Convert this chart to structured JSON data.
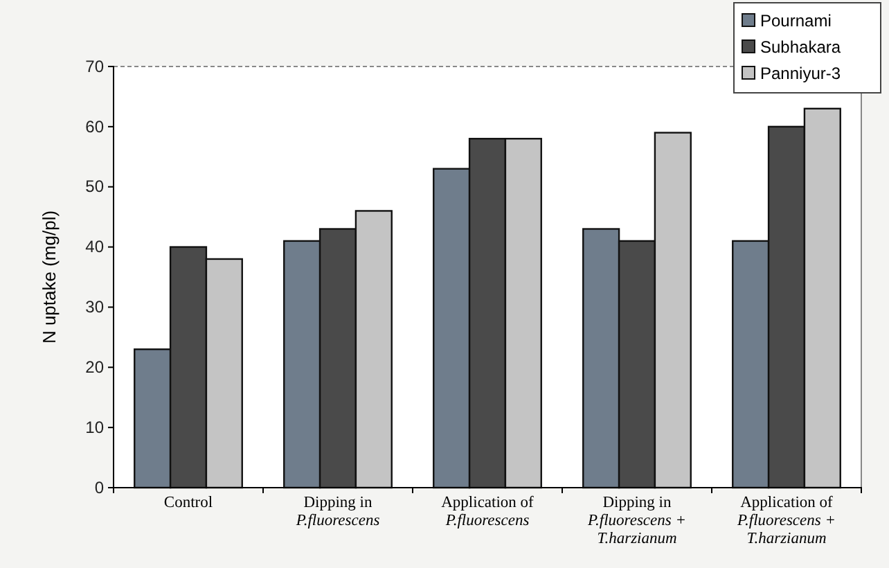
{
  "chart_data": {
    "type": "bar",
    "ylabel": "N uptake (mg/pl)",
    "categories": [
      "Control",
      "Dipping in\nP.fluorescens",
      "Application of\nP.fluorescens",
      "Dipping in\nP.fluorescens +\nT.harzianum",
      "Application of\nP.fluorescens +\nT.harzianum"
    ],
    "series": [
      {
        "name": "Pournami",
        "color": "#6f7d8c",
        "values": [
          23,
          41,
          53,
          43,
          41
        ]
      },
      {
        "name": "Subhakara",
        "color": "#4a4a4a",
        "values": [
          40,
          43,
          58,
          41,
          60
        ]
      },
      {
        "name": "Panniyur-3",
        "color": "#c4c4c4",
        "values": [
          38,
          46,
          58,
          59,
          63
        ]
      }
    ],
    "ylim": [
      0,
      70
    ],
    "yticks": [
      0,
      10,
      20,
      30,
      40,
      50,
      60,
      70
    ],
    "legend": "top right"
  }
}
